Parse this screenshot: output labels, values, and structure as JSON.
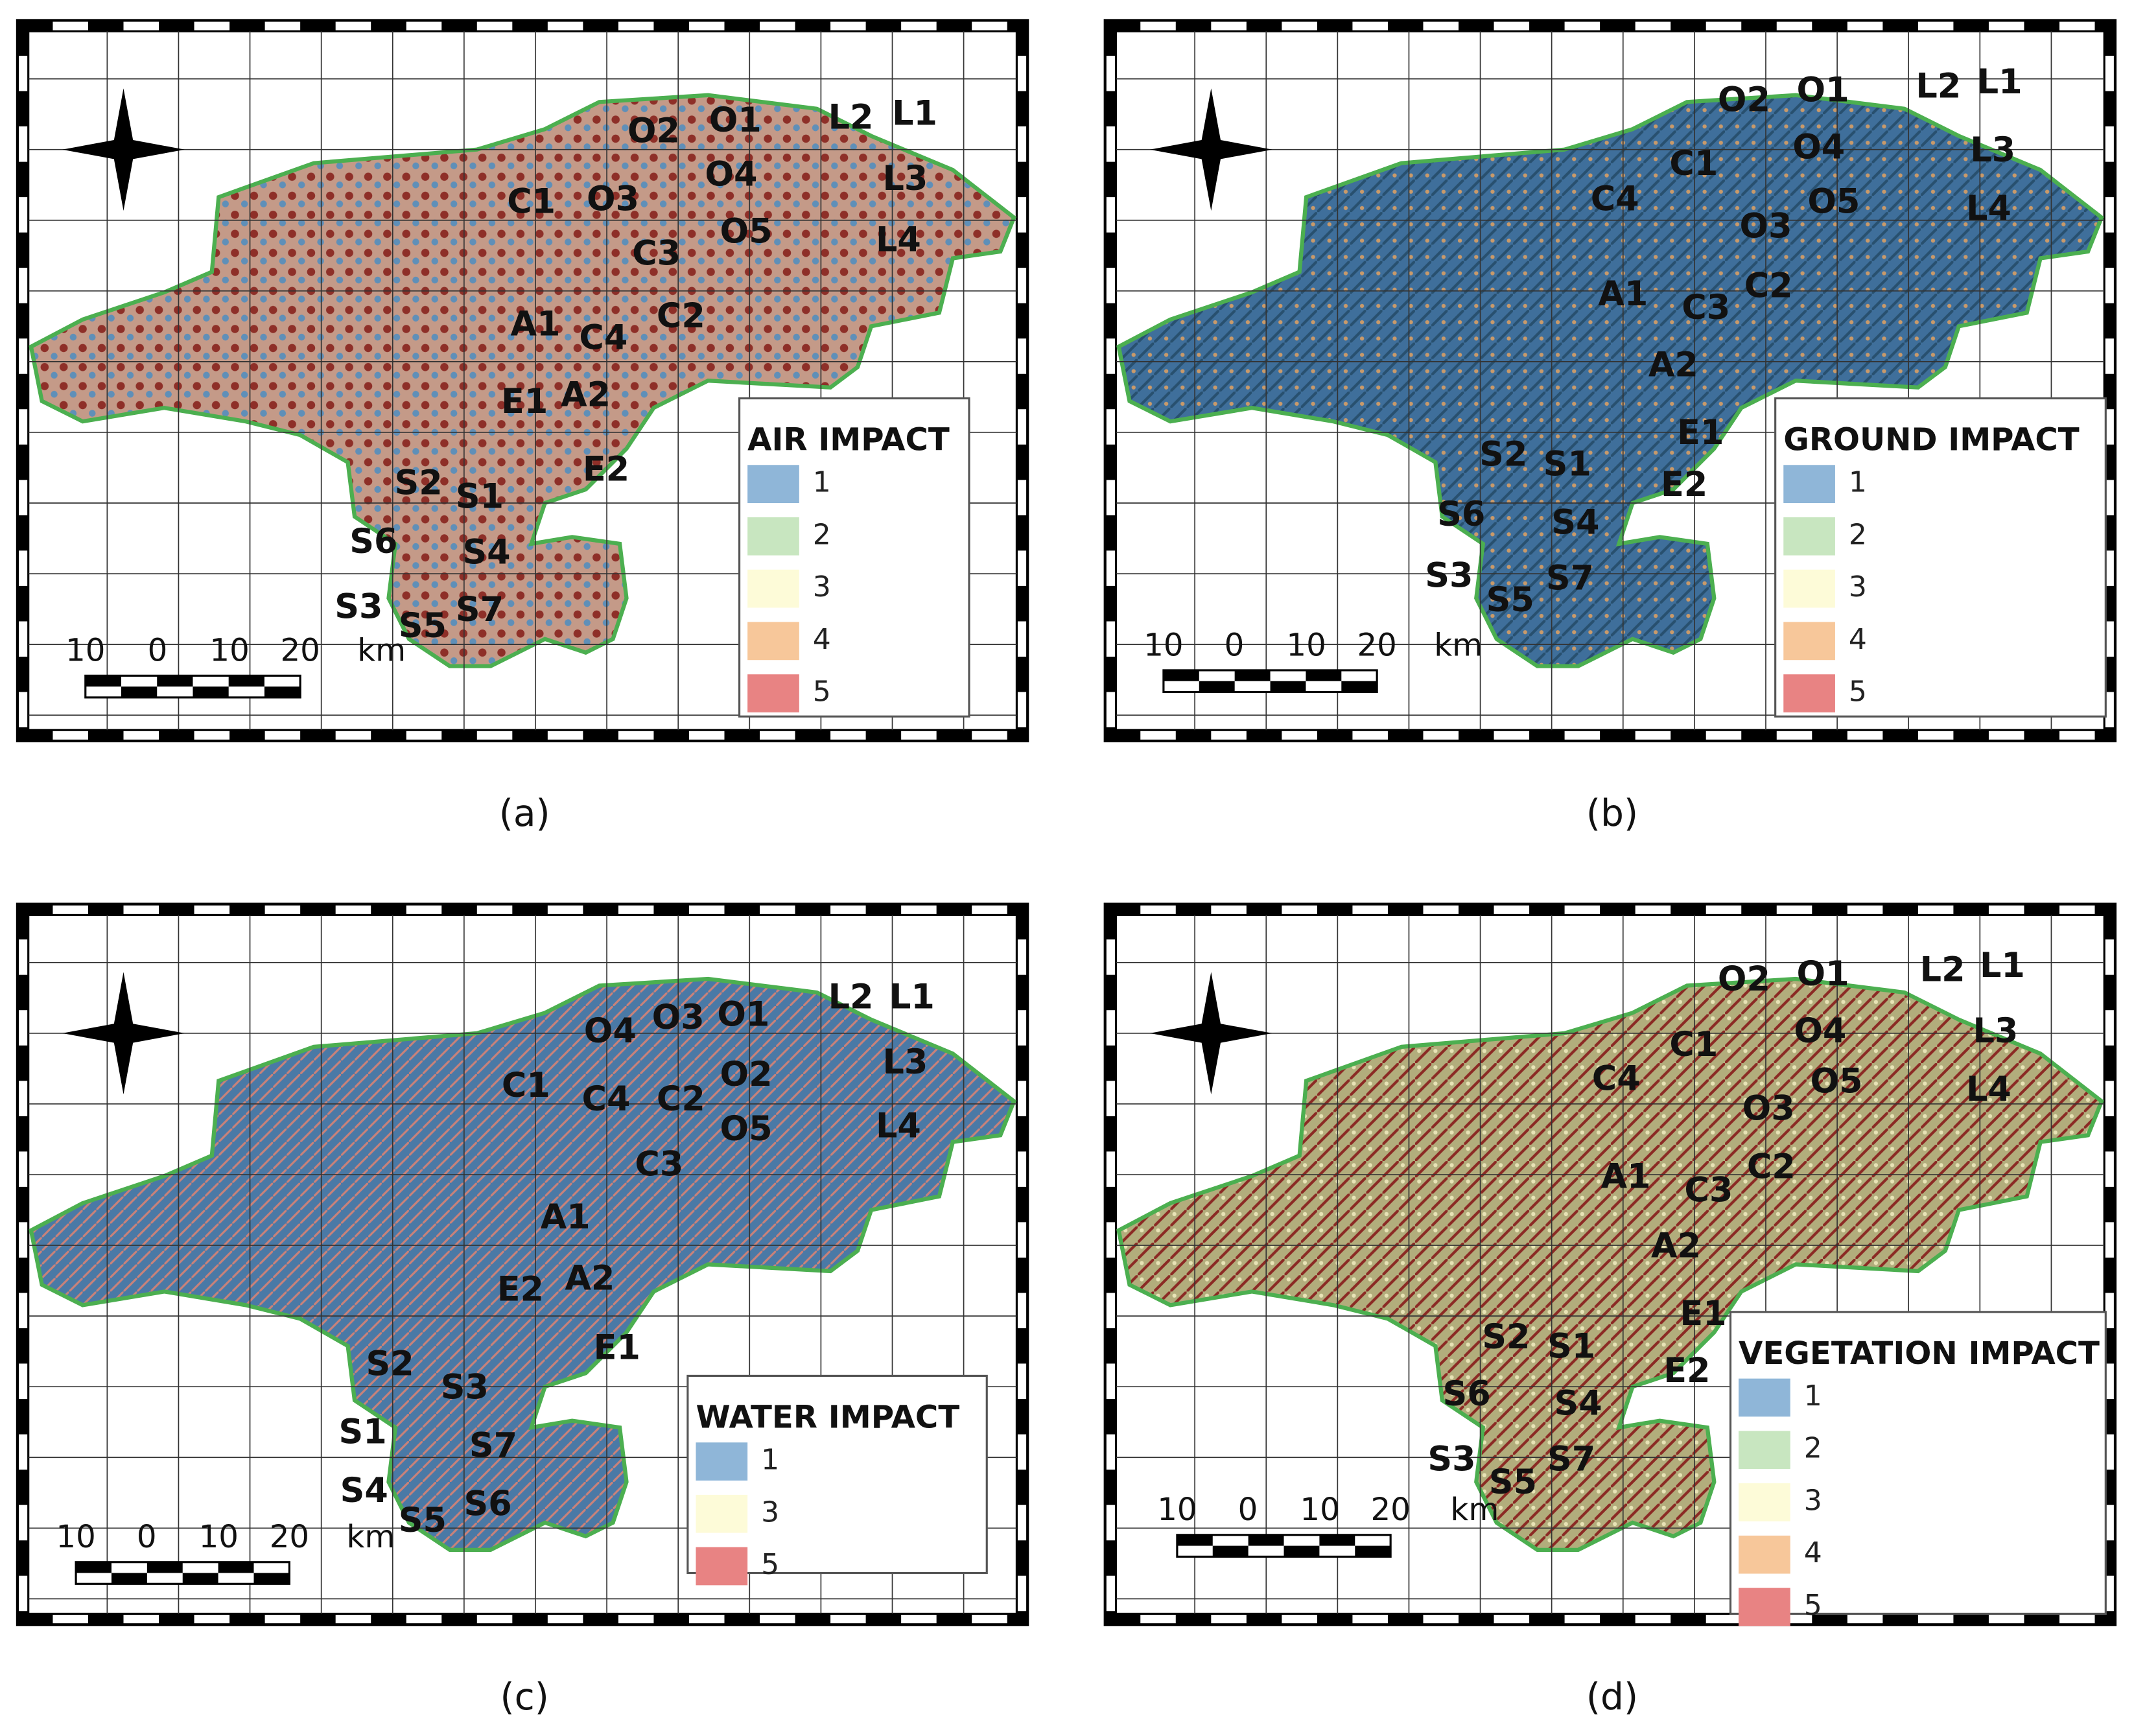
{
  "panels": [
    {
      "caption": "(a)",
      "legend": {
        "title": "AIR IMPACT",
        "items": [
          "1",
          "2",
          "3",
          "4",
          "5"
        ]
      },
      "scale": [
        "10",
        "0",
        "10",
        "20",
        "km"
      ],
      "sites": [
        "O2",
        "O1",
        "L2",
        "L1",
        "O4",
        "L3",
        "C1",
        "O3",
        "O5",
        "L4",
        "C3",
        "A1",
        "C4",
        "C2",
        "E1",
        "A2",
        "E2",
        "S2",
        "S1",
        "S6",
        "S4",
        "S3",
        "S7",
        "S5"
      ]
    },
    {
      "caption": "(b)",
      "legend": {
        "title": "GROUND IMPACT",
        "items": [
          "1",
          "2",
          "3",
          "4",
          "5"
        ]
      },
      "scale": [
        "10",
        "0",
        "10",
        "20",
        "km"
      ],
      "sites": [
        "O2",
        "O1",
        "L2",
        "L1",
        "L3",
        "C1",
        "O4",
        "C4",
        "O5",
        "L4",
        "O3",
        "C2",
        "A1",
        "C3",
        "A2",
        "E1",
        "S2",
        "S1",
        "E2",
        "S6",
        "S4",
        "S3",
        "S7",
        "S5"
      ]
    },
    {
      "caption": "(c)",
      "legend": {
        "title": "WATER IMPACT",
        "items": [
          "1",
          "3",
          "5"
        ]
      },
      "scale": [
        "10",
        "0",
        "10",
        "20",
        "km"
      ],
      "sites": [
        "L2",
        "L1",
        "O4",
        "O3",
        "O1",
        "L3",
        "C1",
        "O2",
        "C4",
        "C2",
        "O5",
        "L4",
        "C3",
        "A1",
        "E2",
        "A2",
        "E1",
        "S2",
        "S3",
        "S1",
        "S7",
        "S4",
        "S5",
        "S6"
      ]
    },
    {
      "caption": "(d)",
      "legend": {
        "title": "VEGETATION IMPACT",
        "items": [
          "1",
          "2",
          "3",
          "4",
          "5"
        ]
      },
      "scale": [
        "10",
        "0",
        "10",
        "20",
        "km"
      ],
      "sites": [
        "O2",
        "O1",
        "L2",
        "L1",
        "C1",
        "O4",
        "L3",
        "C4",
        "O5",
        "L4",
        "O3",
        "C2",
        "A1",
        "C3",
        "A2",
        "E1",
        "S2",
        "S1",
        "E2",
        "S6",
        "S4",
        "S3",
        "S7",
        "S5"
      ]
    }
  ]
}
